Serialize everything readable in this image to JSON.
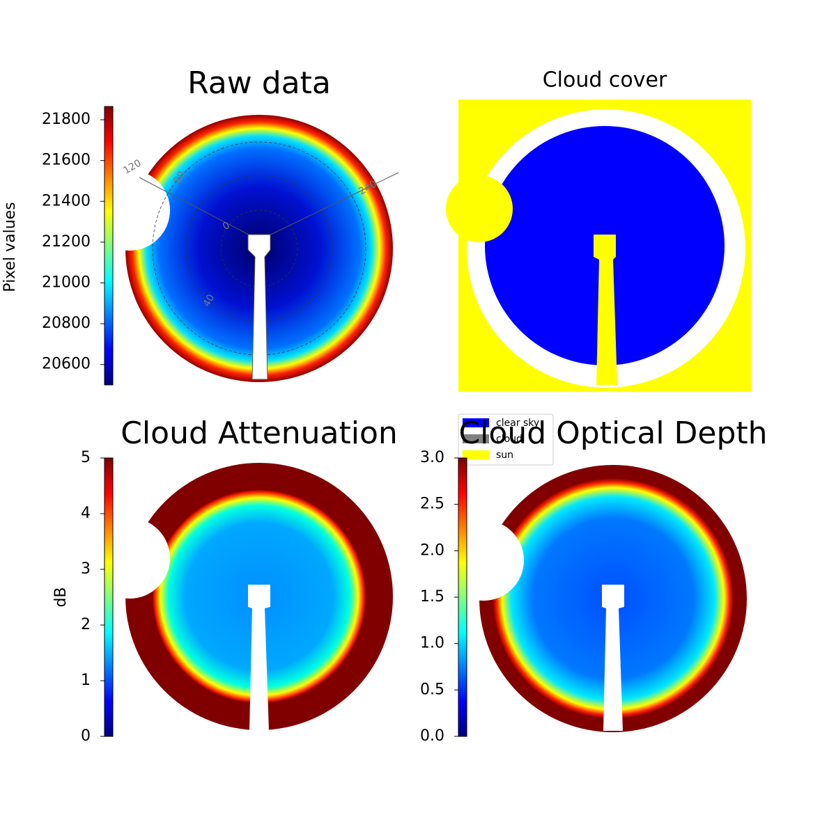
{
  "chart_data": [
    {
      "type": "image",
      "title": "Raw data",
      "colorbar_label": "Pixel values",
      "ylim": [
        20500,
        21865
      ],
      "yticks": [
        20600,
        20800,
        21000,
        21200,
        21400,
        21600,
        21800
      ],
      "annotations": [
        "120",
        "80",
        "240",
        "40",
        "0"
      ]
    },
    {
      "type": "image",
      "title": "Cloud cover",
      "legend": [
        {
          "name": "clear sky",
          "color": "#0000ff"
        },
        {
          "name": "cloud",
          "color": "#808080"
        },
        {
          "name": "sun",
          "color": "#ffff00"
        }
      ]
    },
    {
      "type": "image",
      "title": "Cloud Attenuation",
      "colorbar_label": "dB",
      "ylim": [
        0,
        5
      ],
      "yticks": [
        0,
        1,
        2,
        3,
        4,
        5
      ]
    },
    {
      "type": "image",
      "title": "Cloud Optical Depth",
      "ylim": [
        0,
        3
      ],
      "yticks": [
        {
          "value": 0,
          "label": "0.0"
        },
        0.5,
        {
          "value": 1,
          "label": "1.0"
        },
        1.5,
        {
          "value": 2,
          "label": "2.0"
        },
        2.5,
        {
          "value": 3,
          "label": "3.0"
        }
      ]
    }
  ]
}
